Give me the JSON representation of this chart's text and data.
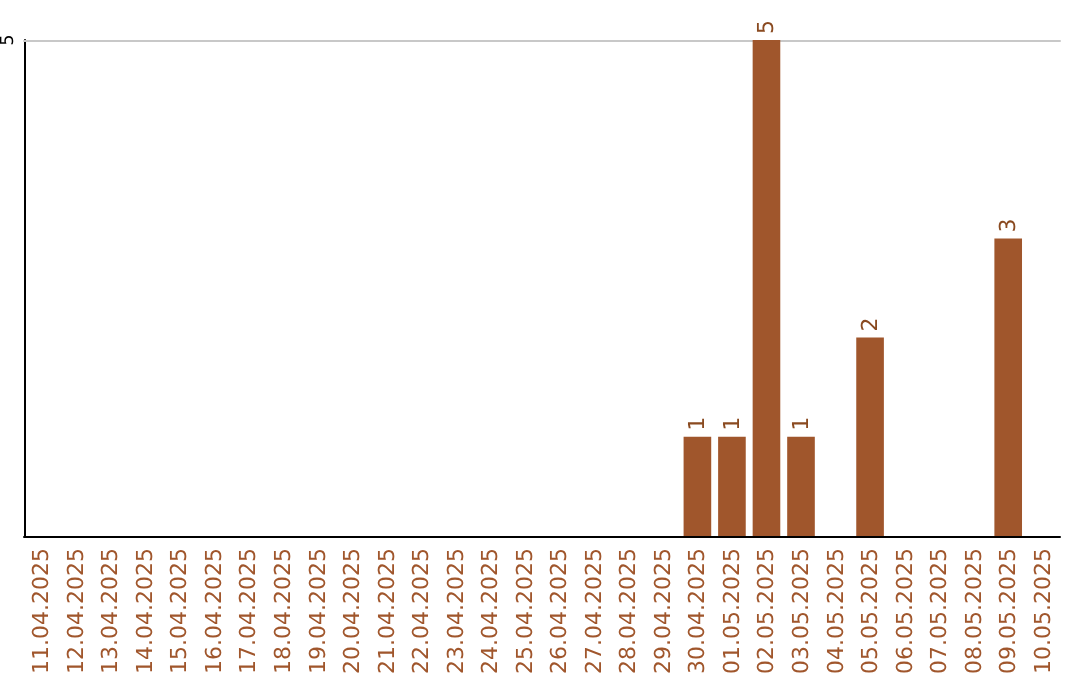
{
  "chart_data": {
    "type": "bar",
    "categories": [
      "11.04.2025",
      "12.04.2025",
      "13.04.2025",
      "14.04.2025",
      "15.04.2025",
      "16.04.2025",
      "17.04.2025",
      "18.04.2025",
      "19.04.2025",
      "20.04.2025",
      "21.04.2025",
      "22.04.2025",
      "23.04.2025",
      "24.04.2025",
      "25.04.2025",
      "26.04.2025",
      "27.04.2025",
      "28.04.2025",
      "29.04.2025",
      "30.04.2025",
      "01.05.2025",
      "02.05.2025",
      "03.05.2025",
      "04.05.2025",
      "05.05.2025",
      "06.05.2025",
      "07.05.2025",
      "08.05.2025",
      "09.05.2025",
      "10.05.2025"
    ],
    "values": [
      null,
      null,
      null,
      null,
      null,
      null,
      null,
      null,
      null,
      null,
      null,
      null,
      null,
      null,
      null,
      null,
      null,
      null,
      null,
      1,
      1,
      5,
      1,
      null,
      2,
      null,
      null,
      null,
      3,
      null
    ],
    "color": "#a0562c",
    "ylim": [
      0,
      5
    ],
    "yticks": [
      5
    ],
    "data_labels": true
  }
}
